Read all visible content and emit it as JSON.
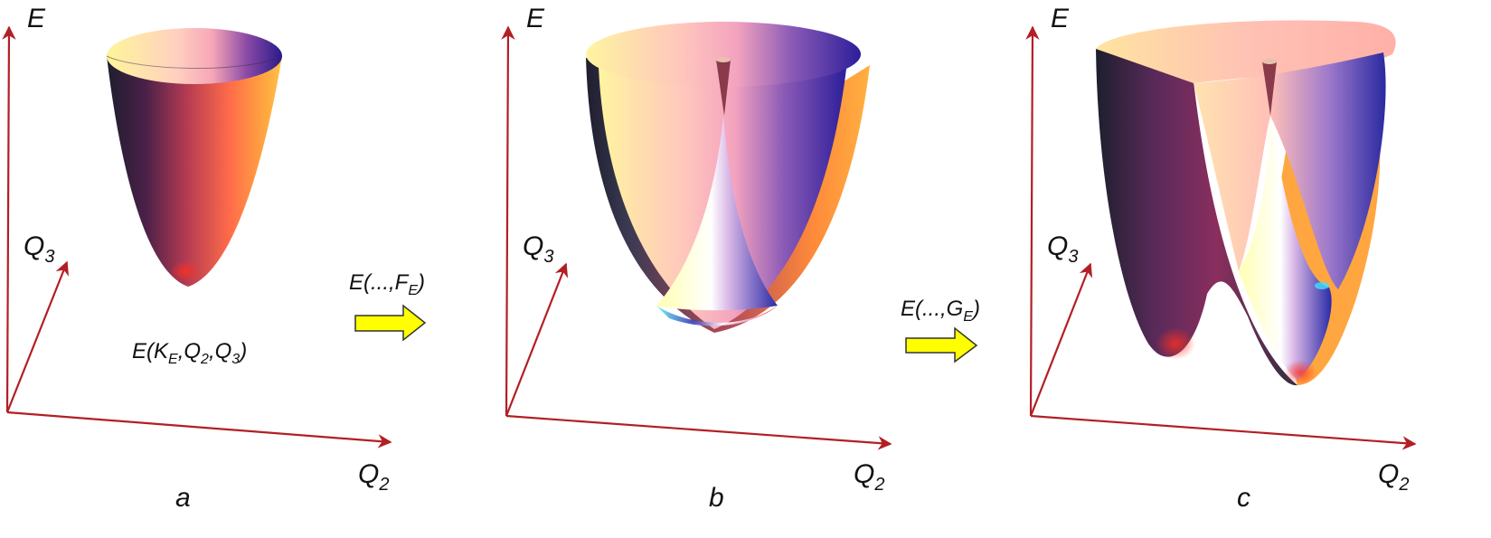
{
  "axis_label_e": "E",
  "axis_label_q3": "Q",
  "axis_label_q3_sub": "3",
  "axis_label_q2": "Q",
  "axis_label_q2_sub": "2",
  "panels": [
    {
      "letter": "a",
      "formula_main": "E(K",
      "formula_sub1": "E",
      "formula_rest1": ",Q",
      "formula_sub2": "2",
      "formula_rest2": ",Q",
      "formula_sub3": "3",
      "formula_end": ")"
    },
    {
      "letter": "b"
    },
    {
      "letter": "c"
    }
  ],
  "transitions": [
    {
      "label_main": "E(...,F",
      "label_sub": "E",
      "label_end": ")"
    },
    {
      "label_main": "E(...,G",
      "label_sub": "E",
      "label_end": ")"
    }
  ],
  "colors": {
    "axis": "#b21f24",
    "arrow_fill": "#ffff00",
    "arrow_stroke": "#333333"
  }
}
